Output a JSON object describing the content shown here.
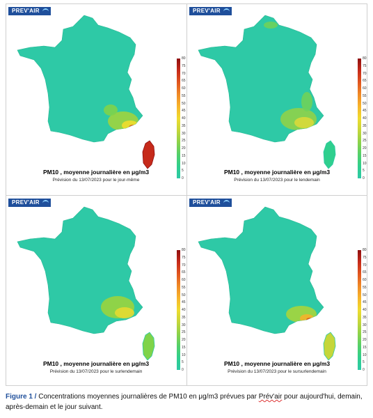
{
  "logo_text": "PREV'AIR",
  "colorbar_ticks": [
    "80",
    "75",
    "70",
    "65",
    "60",
    "55",
    "50",
    "45",
    "40",
    "35",
    "30",
    "25",
    "20",
    "15",
    "10",
    "5",
    "0"
  ],
  "panels": [
    {
      "title": "PM10 , moyenne journalière en μg/m3",
      "subtitle": "Prévision du 13/07/2023 pour le jour-même"
    },
    {
      "title": "PM10 , moyenne journalière en μg/m3",
      "subtitle": "Prévision du 13/07/2023 pour le lendemain"
    },
    {
      "title": "PM10 , moyenne journalière en μg/m3",
      "subtitle": "Prévision du 13/07/2023 pour le surlendemain"
    },
    {
      "title": "PM10 , moyenne journalière en μg/m3",
      "subtitle": "Prévision du 13/07/2023 pour le sursurlendemain"
    }
  ],
  "caption": {
    "figure_label": "Figure 1 /",
    "text_before": " Concentrations moyennes journalières de PM10 en μg/m3 prévues par ",
    "source": "Prév'air",
    "text_after": " pour aujourd'hui, demain, après-demain et le jour suivant."
  },
  "colors": {
    "base": "#2ec9a6",
    "scale": [
      "#2ec9a6",
      "#2fcf8e",
      "#53d06a",
      "#8cd24a",
      "#c5d63a",
      "#efdc2e",
      "#f7b52b",
      "#f08a26",
      "#e0561f",
      "#c62a1a",
      "#8e0f0f"
    ]
  }
}
